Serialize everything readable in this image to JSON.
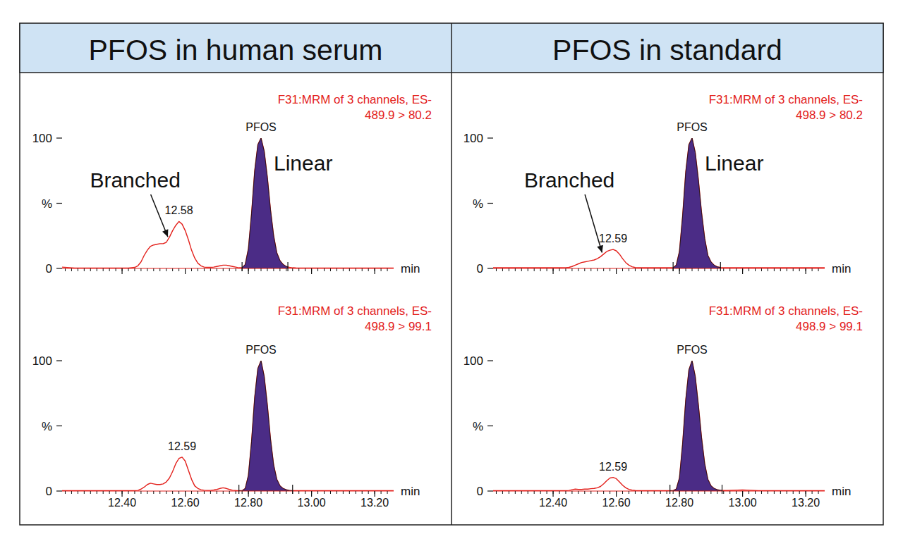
{
  "chart_data": [
    {
      "type": "line",
      "title": "PFOS in human serum",
      "subtitle": [
        "F31:MRM of 3 channels, ES-",
        "489.9 > 80.2"
      ],
      "peak_label": "PFOS",
      "branched_label": "Branched",
      "linear_label": "Linear",
      "x_label": "min",
      "color": "#e3211c",
      "x": [
        12.21,
        12.25,
        12.3,
        12.35,
        12.4,
        12.42,
        12.44,
        12.45,
        12.46,
        12.47,
        12.48,
        12.49,
        12.5,
        12.51,
        12.52,
        12.53,
        12.54,
        12.55,
        12.56,
        12.57,
        12.58,
        12.59,
        12.6,
        12.61,
        12.62,
        12.63,
        12.64,
        12.65,
        12.66,
        12.67,
        12.68,
        12.69,
        12.7,
        12.71,
        12.72,
        12.73,
        12.74,
        12.75,
        12.76,
        12.77,
        12.78,
        12.79,
        12.8,
        12.81,
        12.82,
        12.83,
        12.84,
        12.85,
        12.86,
        12.87,
        12.88,
        12.89,
        12.9,
        12.91,
        12.92,
        12.93,
        12.94,
        12.95,
        13,
        13.05,
        13.1,
        13.15,
        13.2,
        13.26
      ],
      "values": [
        1,
        0.3,
        0.3,
        0.3,
        0.3,
        0.3,
        0.8,
        2,
        5,
        10,
        14,
        17,
        18,
        18.5,
        19,
        19,
        20,
        24,
        29,
        33,
        36,
        34,
        29,
        22,
        14,
        8,
        4,
        2,
        1,
        0.8,
        0.8,
        1,
        1.5,
        2,
        2.5,
        2.5,
        2,
        1.5,
        1,
        0.5,
        0.5,
        3,
        15,
        42,
        75,
        95,
        100,
        90,
        70,
        45,
        25,
        12,
        6,
        3,
        1.5,
        0.8,
        0.5,
        0.4,
        0.3,
        0.3,
        0.3,
        0.3,
        0.3,
        0.3
      ],
      "peak_window": [
        12.78,
        12.925
      ],
      "retention_times": [
        12.58
      ],
      "xlim": [
        12.21,
        13.26
      ],
      "ylim": [
        0,
        100
      ],
      "xticks": [
        12.4,
        12.6,
        12.8,
        13,
        13.2
      ],
      "minor_xticks": [
        12.22,
        12.24,
        12.26,
        12.28,
        12.3,
        12.32,
        12.34,
        12.36,
        12.38,
        12.4,
        12.42,
        12.44,
        12.46,
        12.48,
        12.5,
        12.52,
        12.54,
        12.56,
        12.58,
        12.6,
        12.62,
        12.64,
        12.66,
        12.68,
        12.7,
        12.72,
        12.74,
        12.76,
        12.78,
        12.8,
        12.82,
        12.84,
        12.86,
        12.88,
        12.9,
        12.92,
        12.94,
        12.96,
        12.98,
        13,
        13.02,
        13.04,
        13.06,
        13.08,
        13.1,
        13.12,
        13.14,
        13.16,
        13.18,
        13.2,
        13.22,
        13.24
      ],
      "yticks": [
        0,
        {
          "value": 50,
          "label": "%"
        },
        100
      ],
      "grid": false,
      "tick_labels": "y"
    },
    {
      "type": "line",
      "subtitle": [
        "F31:MRM of 3 channels, ES-",
        "498.9 > 99.1"
      ],
      "peak_label": "PFOS",
      "x_label": "min",
      "color": "#e3211c",
      "x": [
        12.21,
        12.25,
        12.3,
        12.35,
        12.4,
        12.42,
        12.44,
        12.45,
        12.46,
        12.47,
        12.48,
        12.49,
        12.5,
        12.51,
        12.52,
        12.53,
        12.54,
        12.55,
        12.56,
        12.57,
        12.58,
        12.59,
        12.6,
        12.61,
        12.62,
        12.63,
        12.64,
        12.65,
        12.66,
        12.67,
        12.68,
        12.69,
        12.7,
        12.71,
        12.72,
        12.73,
        12.74,
        12.75,
        12.76,
        12.77,
        12.78,
        12.79,
        12.8,
        12.81,
        12.82,
        12.83,
        12.84,
        12.85,
        12.86,
        12.87,
        12.88,
        12.89,
        12.9,
        12.91,
        12.92,
        12.93,
        12.94,
        12.95,
        13,
        13.05,
        13.1,
        13.15,
        13.2,
        13.26
      ],
      "values": [
        0.3,
        0.3,
        0.3,
        0.3,
        0.3,
        0.3,
        0.3,
        0.5,
        1.5,
        3,
        5,
        6,
        5.5,
        5,
        5,
        5.5,
        7,
        10,
        15,
        21,
        25,
        26,
        23,
        16,
        9,
        4,
        2,
        1,
        0.6,
        0.5,
        0.5,
        0.8,
        1.2,
        2,
        2.5,
        2,
        1.2,
        0.6,
        0.4,
        0.3,
        0.3,
        2,
        12,
        38,
        72,
        94,
        100,
        88,
        66,
        40,
        20,
        9,
        4,
        2,
        1,
        0.5,
        0.3,
        0.3,
        0.3,
        0.3,
        0.3,
        0.3,
        0.3,
        0.3
      ],
      "peak_window": [
        12.77,
        12.94
      ],
      "retention_times": [
        12.59
      ],
      "xlim": [
        12.21,
        13.26
      ],
      "ylim": [
        0,
        100
      ],
      "xticks": [
        {
          "value": 12.4,
          "label": "12.40"
        },
        {
          "value": 12.6,
          "label": "12.60"
        },
        {
          "value": 12.8,
          "label": "12.80"
        },
        {
          "value": 13,
          "label": "13.00"
        },
        {
          "value": 13.2,
          "label": "13.20"
        }
      ],
      "minor_xticks": [
        12.22,
        12.24,
        12.26,
        12.28,
        12.3,
        12.32,
        12.34,
        12.36,
        12.38,
        12.4,
        12.42,
        12.44,
        12.46,
        12.48,
        12.5,
        12.52,
        12.54,
        12.56,
        12.58,
        12.6,
        12.62,
        12.64,
        12.66,
        12.68,
        12.7,
        12.72,
        12.74,
        12.76,
        12.78,
        12.8,
        12.82,
        12.84,
        12.86,
        12.88,
        12.9,
        12.92,
        12.94,
        12.96,
        12.98,
        13,
        13.02,
        13.04,
        13.06,
        13.08,
        13.1,
        13.12,
        13.14,
        13.16,
        13.18,
        13.2,
        13.22,
        13.24
      ],
      "yticks": [
        0,
        {
          "value": 50,
          "label": "%"
        },
        100
      ],
      "grid": false,
      "tick_labels": true
    },
    {
      "type": "line",
      "title": "PFOS in standard",
      "subtitle": [
        "F31:MRM of 3 channels, ES-",
        "498.9 > 80.2"
      ],
      "peak_label": "PFOS",
      "branched_label": "Branched",
      "linear_label": "Linear",
      "x_label": "min",
      "color": "#e3211c",
      "x": [
        12.21,
        12.25,
        12.3,
        12.35,
        12.4,
        12.42,
        12.44,
        12.45,
        12.46,
        12.47,
        12.48,
        12.49,
        12.5,
        12.51,
        12.52,
        12.53,
        12.54,
        12.55,
        12.56,
        12.57,
        12.58,
        12.59,
        12.6,
        12.61,
        12.62,
        12.63,
        12.64,
        12.65,
        12.66,
        12.67,
        12.68,
        12.69,
        12.7,
        12.71,
        12.72,
        12.73,
        12.74,
        12.75,
        12.76,
        12.77,
        12.78,
        12.79,
        12.8,
        12.81,
        12.82,
        12.83,
        12.84,
        12.85,
        12.86,
        12.87,
        12.88,
        12.89,
        12.9,
        12.91,
        12.92,
        12.93,
        12.94,
        12.95,
        13,
        13.05,
        13.1,
        13.15,
        13.2,
        13.26
      ],
      "values": [
        0.5,
        0.5,
        0.5,
        0.5,
        0.5,
        0.5,
        0.6,
        0.8,
        1.5,
        2.5,
        3.5,
        4.5,
        5,
        5.5,
        6,
        6.5,
        7.5,
        9,
        11,
        13,
        14,
        14.5,
        13.5,
        11,
        7.5,
        4.5,
        2.5,
        1.3,
        0.7,
        0.5,
        0.5,
        0.5,
        0.5,
        0.5,
        0.5,
        0.5,
        0.5,
        0.5,
        0.5,
        0.5,
        0.5,
        2.5,
        13,
        40,
        74,
        95,
        100,
        89,
        68,
        43,
        23,
        10,
        5,
        2.5,
        1.2,
        0.7,
        0.5,
        0.5,
        0.5,
        0.5,
        0.5,
        0.5,
        0.5,
        0.5
      ],
      "peak_window": [
        12.78,
        12.93
      ],
      "retention_times": [
        12.59
      ],
      "xlim": [
        12.21,
        13.26
      ],
      "ylim": [
        0,
        100
      ],
      "xticks": [
        12.4,
        12.6,
        12.8,
        13,
        13.2
      ],
      "minor_xticks": [
        12.22,
        12.24,
        12.26,
        12.28,
        12.3,
        12.32,
        12.34,
        12.36,
        12.38,
        12.4,
        12.42,
        12.44,
        12.46,
        12.48,
        12.5,
        12.52,
        12.54,
        12.56,
        12.58,
        12.6,
        12.62,
        12.64,
        12.66,
        12.68,
        12.7,
        12.72,
        12.74,
        12.76,
        12.78,
        12.8,
        12.82,
        12.84,
        12.86,
        12.88,
        12.9,
        12.92,
        12.94,
        12.96,
        12.98,
        13,
        13.02,
        13.04,
        13.06,
        13.08,
        13.1,
        13.12,
        13.14,
        13.16,
        13.18,
        13.2,
        13.22,
        13.24
      ],
      "yticks": [
        0,
        {
          "value": 50,
          "label": "%"
        },
        100
      ],
      "grid": false,
      "tick_labels": "y"
    },
    {
      "type": "line",
      "subtitle": [
        "F31:MRM of 3 channels, ES-",
        "498.9 > 99.1"
      ],
      "peak_label": "PFOS",
      "x_label": "min",
      "color": "#e3211c",
      "x": [
        12.21,
        12.25,
        12.3,
        12.35,
        12.4,
        12.42,
        12.44,
        12.45,
        12.46,
        12.47,
        12.48,
        12.49,
        12.5,
        12.51,
        12.52,
        12.53,
        12.54,
        12.55,
        12.56,
        12.57,
        12.58,
        12.59,
        12.6,
        12.61,
        12.62,
        12.63,
        12.64,
        12.65,
        12.66,
        12.67,
        12.68,
        12.69,
        12.7,
        12.71,
        12.72,
        12.73,
        12.74,
        12.75,
        12.76,
        12.77,
        12.78,
        12.79,
        12.8,
        12.81,
        12.82,
        12.83,
        12.84,
        12.85,
        12.86,
        12.87,
        12.88,
        12.89,
        12.9,
        12.91,
        12.92,
        12.93,
        12.94,
        12.95,
        13,
        13.05,
        13.1,
        13.15,
        13.2,
        13.26
      ],
      "values": [
        0.3,
        0.3,
        0.3,
        0.3,
        0.3,
        0.3,
        0.3,
        0.5,
        1,
        1.5,
        1.2,
        1.2,
        1.5,
        1.5,
        1.8,
        2,
        2.5,
        3.5,
        5.5,
        8,
        10,
        10.5,
        9.5,
        7,
        4.5,
        2.5,
        1.3,
        0.7,
        0.4,
        0.3,
        0.3,
        0.3,
        0.3,
        0.3,
        0.3,
        0.3,
        0.3,
        0.3,
        0.3,
        0.3,
        0.3,
        1.5,
        10,
        36,
        70,
        93,
        100,
        88,
        66,
        41,
        21,
        9,
        4,
        2,
        1,
        0.6,
        0.4,
        0.4,
        0.8,
        0.3,
        0.3,
        0.3,
        0.3,
        0.3
      ],
      "peak_window": [
        12.77,
        12.935
      ],
      "retention_times": [
        12.59
      ],
      "xlim": [
        12.21,
        13.26
      ],
      "ylim": [
        0,
        100
      ],
      "xticks": [
        {
          "value": 12.4,
          "label": "12.40"
        },
        {
          "value": 12.6,
          "label": "12.60"
        },
        {
          "value": 12.8,
          "label": "12.80"
        },
        {
          "value": 13,
          "label": "13.00"
        },
        {
          "value": 13.2,
          "label": "13.20"
        }
      ],
      "minor_xticks": [
        12.22,
        12.24,
        12.26,
        12.28,
        12.3,
        12.32,
        12.34,
        12.36,
        12.38,
        12.4,
        12.42,
        12.44,
        12.46,
        12.48,
        12.5,
        12.52,
        12.54,
        12.56,
        12.58,
        12.6,
        12.62,
        12.64,
        12.66,
        12.68,
        12.7,
        12.72,
        12.74,
        12.76,
        12.78,
        12.8,
        12.82,
        12.84,
        12.86,
        12.88,
        12.9,
        12.92,
        12.94,
        12.96,
        12.98,
        13,
        13.02,
        13.04,
        13.06,
        13.08,
        13.1,
        13.12,
        13.14,
        13.16,
        13.18,
        13.2,
        13.22,
        13.24
      ],
      "yticks": [
        0,
        {
          "value": 50,
          "label": "%"
        },
        100
      ],
      "grid": false,
      "tick_labels": true
    }
  ]
}
